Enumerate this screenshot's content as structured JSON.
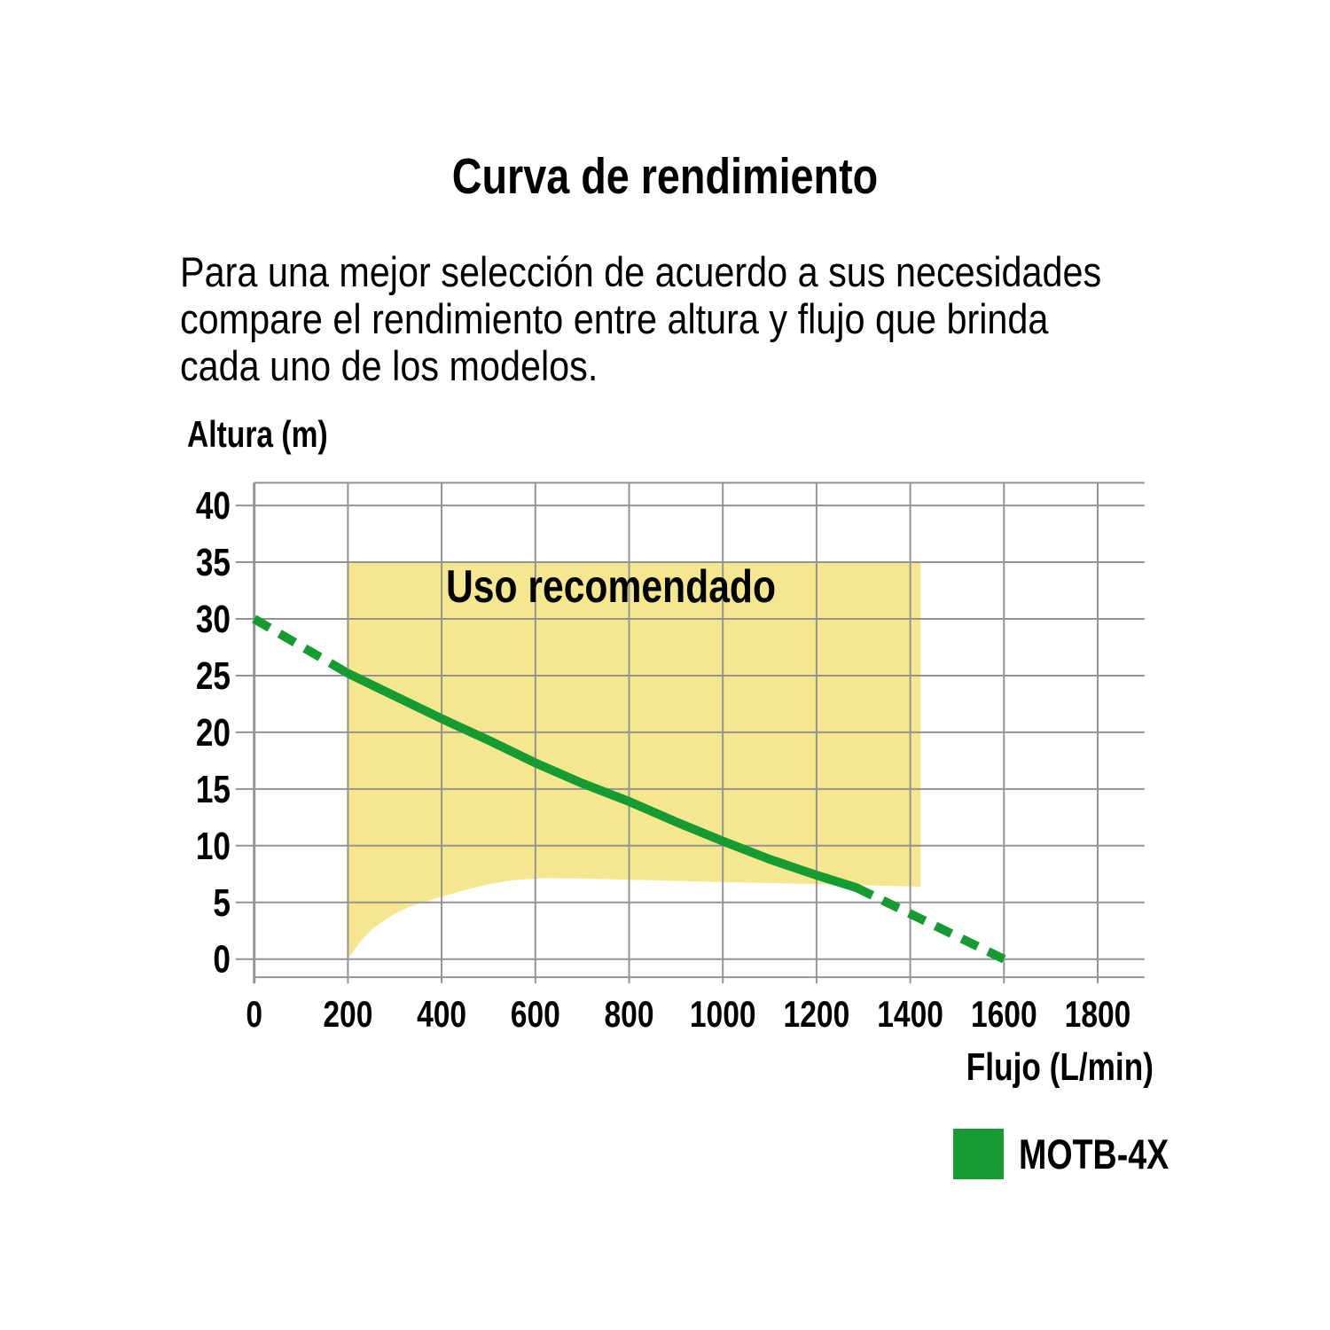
{
  "title": "Curva de rendimiento",
  "description": {
    "lines": [
      "Para una mejor selección de acuerdo a sus necesidades",
      "compare el rendimiento entre altura y flujo que brinda",
      "cada uno de los modelos."
    ]
  },
  "chart_data": {
    "type": "line",
    "xlabel": "Flujo (L/min)",
    "ylabel": "Altura (m)",
    "xlim": [
      0,
      1900
    ],
    "ylim": [
      -1.6,
      42
    ],
    "x_ticks": [
      0,
      200,
      400,
      600,
      800,
      1000,
      1200,
      1400,
      1600,
      1800
    ],
    "y_ticks": [
      0,
      5,
      10,
      15,
      20,
      25,
      30,
      35,
      40
    ],
    "grid": true,
    "grid_color": "#949490",
    "recommended_region": {
      "label": "Uso recomendado",
      "fill": "#f5e78f",
      "top": 35,
      "x_range": [
        200,
        1422
      ],
      "bottom_boundary": [
        [
          200,
          0
        ],
        [
          215,
          0.9
        ],
        [
          230,
          1.7
        ],
        [
          250,
          2.6
        ],
        [
          270,
          3.2
        ],
        [
          300,
          4.0
        ],
        [
          330,
          4.6
        ],
        [
          360,
          5.0
        ],
        [
          400,
          5.5
        ],
        [
          450,
          6.1
        ],
        [
          500,
          6.6
        ],
        [
          550,
          6.95
        ],
        [
          620,
          7.15
        ],
        [
          700,
          7.1
        ],
        [
          800,
          7.0
        ],
        [
          900,
          6.9
        ],
        [
          1000,
          6.8
        ],
        [
          1100,
          6.7
        ],
        [
          1200,
          6.6
        ],
        [
          1300,
          6.5
        ],
        [
          1422,
          6.4
        ]
      ]
    },
    "series": [
      {
        "name": "MOTB-4X",
        "color": "#169a32",
        "segments": [
          {
            "style": "dashed",
            "points": [
              [
                0,
                30
              ],
              [
                200,
                25.2
              ]
            ]
          },
          {
            "style": "solid",
            "points": [
              [
                200,
                25.2
              ],
              [
                300,
                23.2
              ],
              [
                400,
                21.2
              ],
              [
                500,
                19.3
              ],
              [
                600,
                17.3
              ],
              [
                700,
                15.5
              ],
              [
                800,
                13.9
              ],
              [
                900,
                12.1
              ],
              [
                1000,
                10.4
              ],
              [
                1100,
                8.8
              ],
              [
                1200,
                7.4
              ],
              [
                1285,
                6.3
              ]
            ]
          },
          {
            "style": "dashed",
            "points": [
              [
                1285,
                6.3
              ],
              [
                1600,
                0
              ]
            ]
          }
        ]
      }
    ],
    "legend": {
      "swatch_color": "#169a32",
      "label": "MOTB-4X",
      "position": "bottom-right"
    }
  },
  "colors": {
    "background": "#ffffff",
    "text": "#000000",
    "grid": "#949490",
    "curve_green": "#169a32",
    "region_yellow": "#f5e78f"
  }
}
